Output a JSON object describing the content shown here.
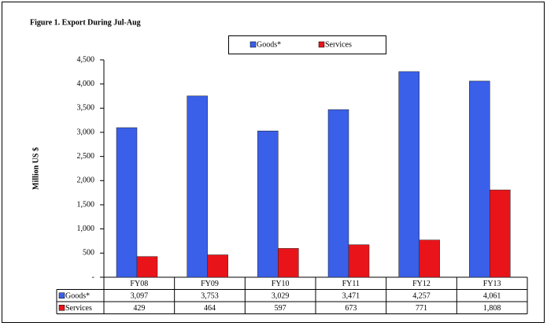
{
  "chart_data": {
    "type": "bar",
    "title": "Figure 1. Export During Jul-Aug",
    "y_label": "Million US $",
    "categories": [
      "FY08",
      "FY09",
      "FY10",
      "FY11",
      "FY12",
      "FY13"
    ],
    "series": [
      {
        "name": "Goods*",
        "color": "#3a5fe8",
        "values": [
          3097,
          3753,
          3029,
          3471,
          4257,
          4061
        ],
        "value_labels": [
          "3,097",
          "3,753",
          "3,029",
          "3,471",
          "4,257",
          "4,061"
        ]
      },
      {
        "name": "Services",
        "color": "#e8141a",
        "values": [
          429,
          464,
          597,
          673,
          771,
          1808
        ],
        "value_labels": [
          "429",
          "464",
          "597",
          "673",
          "771",
          "1,808"
        ]
      }
    ],
    "ylim": [
      0,
      4500
    ],
    "yticks": [
      {
        "value": 0,
        "label": "-"
      },
      500,
      {
        "value": 1000,
        "label": "1,000"
      },
      {
        "value": 1500,
        "label": "1,500"
      },
      {
        "value": 2000,
        "label": "2,000"
      },
      {
        "value": 2500,
        "label": "2,500"
      },
      {
        "value": 3000,
        "label": "3,000"
      },
      {
        "value": 3500,
        "label": "3,500"
      },
      {
        "value": 4000,
        "label": "4,000"
      },
      {
        "value": 4500,
        "label": "4,500"
      }
    ],
    "grid": false,
    "legend": "top"
  }
}
